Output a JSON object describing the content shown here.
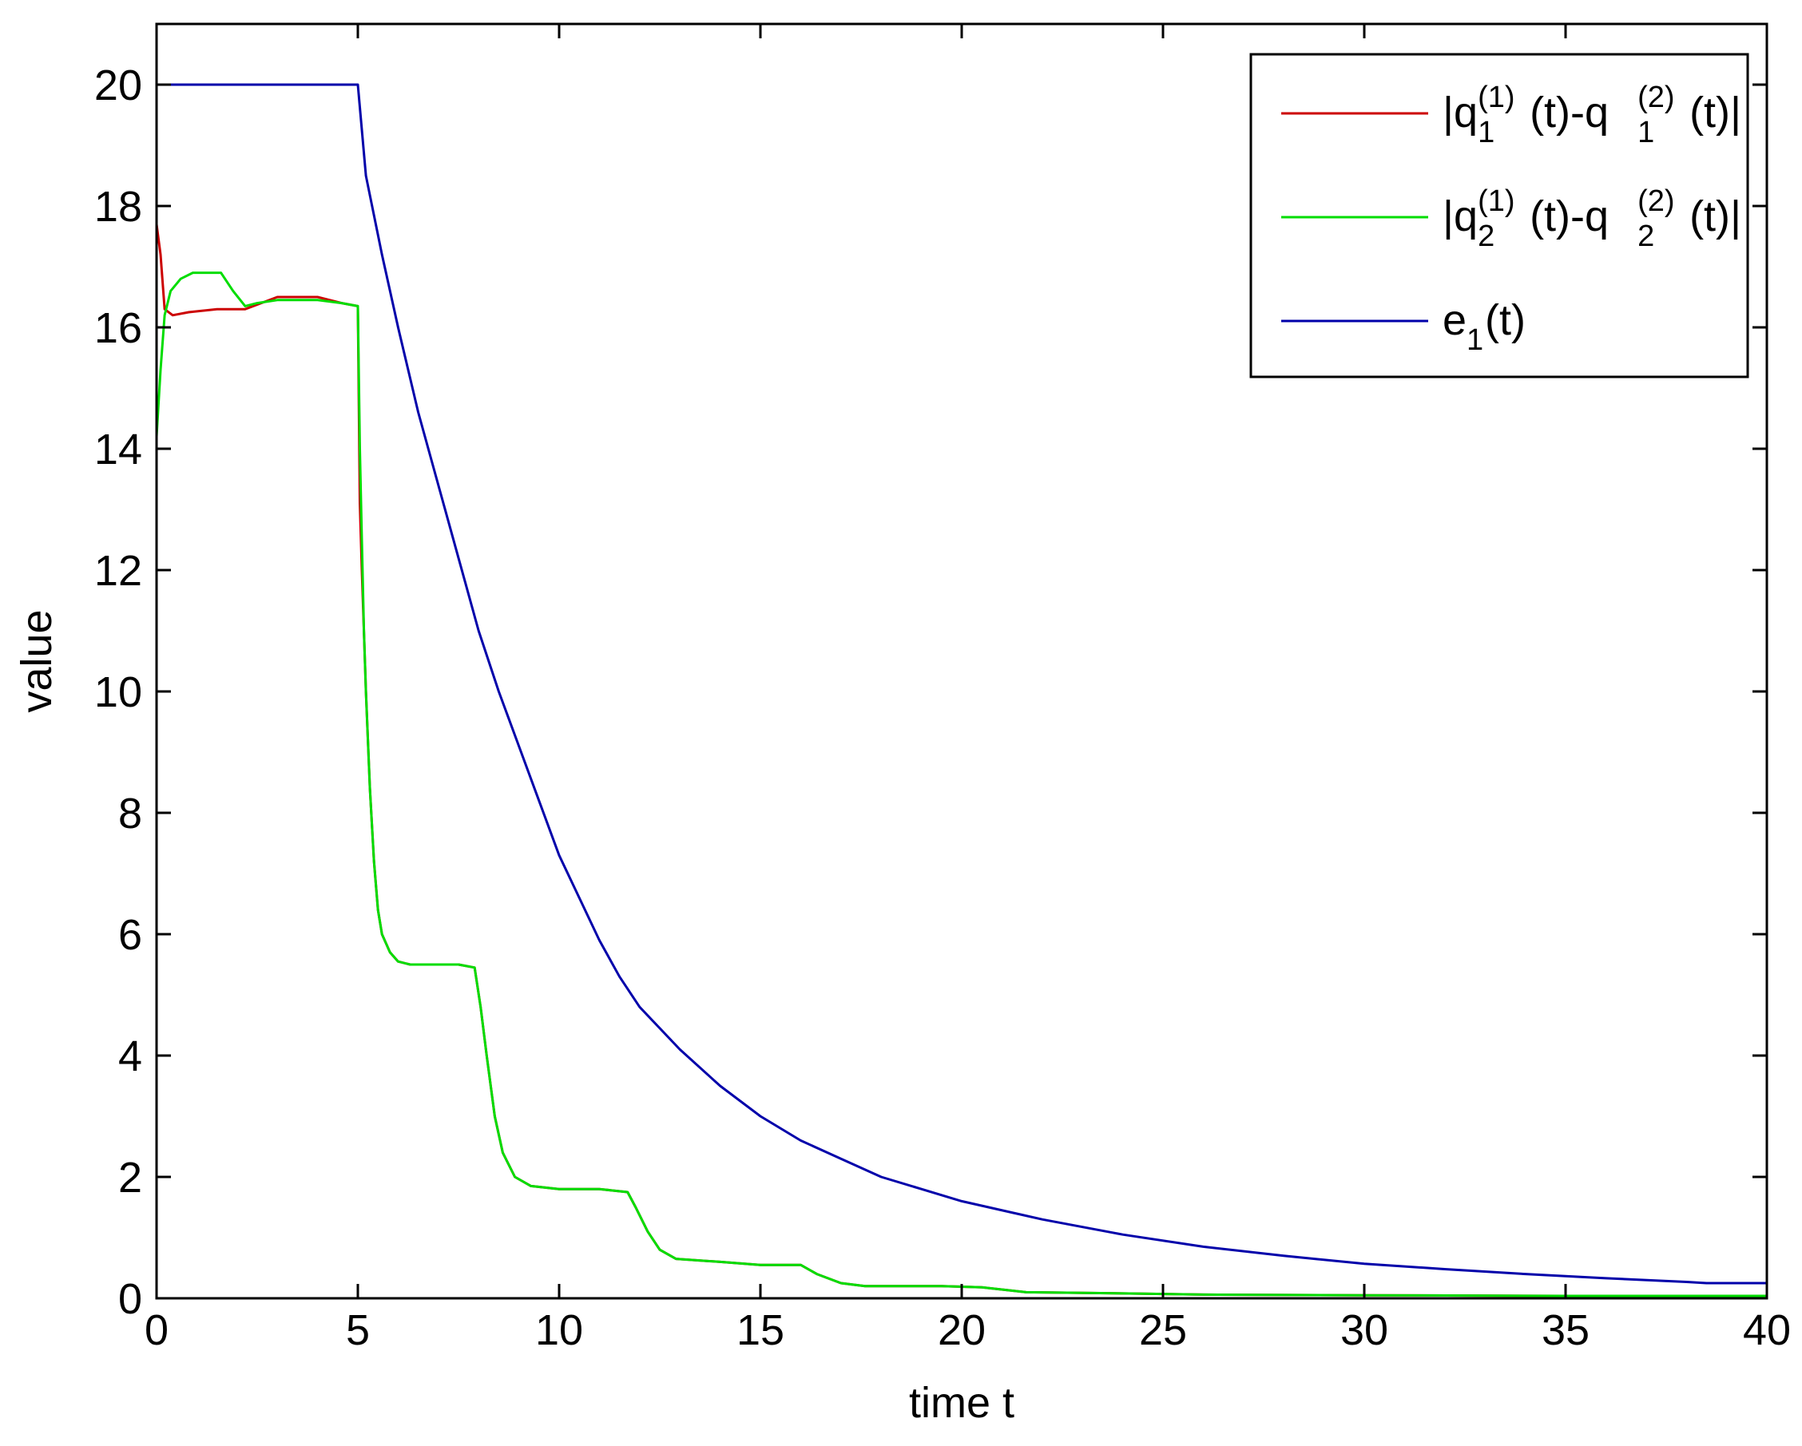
{
  "chart_data": {
    "type": "line",
    "title": "",
    "xlabel": "time t",
    "ylabel": "value",
    "xlim": [
      0,
      40
    ],
    "ylim": [
      0,
      21
    ],
    "xticks": [
      0,
      5,
      10,
      15,
      20,
      25,
      30,
      35,
      40
    ],
    "yticks": [
      0,
      2,
      4,
      6,
      8,
      10,
      12,
      14,
      16,
      18,
      20
    ],
    "xtick_labels": [
      "0",
      "5",
      "10",
      "15",
      "20",
      "25",
      "30",
      "35",
      "40"
    ],
    "ytick_labels": [
      "0",
      "2",
      "4",
      "6",
      "8",
      "10",
      "12",
      "14",
      "16",
      "18",
      "20"
    ],
    "grid": false,
    "legend_position": "top-right",
    "series": [
      {
        "name": "|q1(1)(t)-q1(2)(t)|",
        "legend": {
          "base": "|q",
          "sub1": "1",
          "sup1": "(1)",
          "mid": "(t)-q",
          "sub2": "1",
          "sup2": "(2)",
          "tail": "(t)|"
        },
        "color": "#cc0000",
        "x": [
          0,
          0.1,
          0.2,
          0.4,
          0.8,
          1.5,
          2.2,
          3.0,
          4.0,
          4.6,
          5.0,
          5.05,
          5.1,
          5.15,
          5.2,
          5.3,
          5.4,
          5.5,
          5.6,
          5.8,
          6.0,
          6.3,
          7.0,
          7.5,
          7.9,
          8.05,
          8.2,
          8.4,
          8.6,
          8.9,
          9.3,
          10.0,
          11.0,
          11.7,
          11.9,
          12.2,
          12.5,
          12.9,
          14.0,
          15.0,
          16.0,
          16.4,
          17.0,
          17.6,
          19.5,
          20.5,
          21.6,
          24.0,
          26.0,
          30.0,
          35.0,
          40.0
        ],
        "y": [
          17.7,
          17.2,
          16.3,
          16.2,
          16.25,
          16.3,
          16.3,
          16.5,
          16.5,
          16.4,
          16.35,
          13.1,
          12.0,
          11.0,
          10.0,
          8.4,
          7.2,
          6.4,
          6.0,
          5.7,
          5.55,
          5.5,
          5.5,
          5.5,
          5.45,
          4.8,
          4.0,
          3.0,
          2.4,
          2.0,
          1.85,
          1.8,
          1.8,
          1.75,
          1.5,
          1.1,
          0.8,
          0.65,
          0.6,
          0.55,
          0.55,
          0.4,
          0.25,
          0.2,
          0.2,
          0.18,
          0.1,
          0.08,
          0.06,
          0.05,
          0.04,
          0.04
        ]
      },
      {
        "name": "|q2(1)(t)-q2(2)(t)|",
        "legend": {
          "base": "|q",
          "sub1": "2",
          "sup1": "(1)",
          "mid": "(t)-q",
          "sub2": "2",
          "sup2": "(2)",
          "tail": "(t)|"
        },
        "color": "#00dd00",
        "x": [
          0,
          0.1,
          0.2,
          0.35,
          0.6,
          0.9,
          1.2,
          1.6,
          1.9,
          2.2,
          2.5,
          3.0,
          4.0,
          4.6,
          5.0,
          5.05,
          5.1,
          5.15,
          5.2,
          5.3,
          5.4,
          5.5,
          5.6,
          5.8,
          6.0,
          6.3,
          7.0,
          7.5,
          7.9,
          8.05,
          8.2,
          8.4,
          8.6,
          8.9,
          9.3,
          10.0,
          11.0,
          11.7,
          11.9,
          12.2,
          12.5,
          12.9,
          14.0,
          15.0,
          16.0,
          16.4,
          17.0,
          17.6,
          19.5,
          20.5,
          21.6,
          24.0,
          26.0,
          30.0,
          35.0,
          40.0
        ],
        "y": [
          14.2,
          15.3,
          16.2,
          16.6,
          16.8,
          16.9,
          16.9,
          16.9,
          16.6,
          16.35,
          16.4,
          16.45,
          16.45,
          16.4,
          16.35,
          14.0,
          12.5,
          11.0,
          10.0,
          8.4,
          7.2,
          6.4,
          6.0,
          5.7,
          5.55,
          5.5,
          5.5,
          5.5,
          5.45,
          4.8,
          4.0,
          3.0,
          2.4,
          2.0,
          1.85,
          1.8,
          1.8,
          1.75,
          1.5,
          1.1,
          0.8,
          0.65,
          0.6,
          0.55,
          0.55,
          0.4,
          0.25,
          0.2,
          0.2,
          0.18,
          0.1,
          0.08,
          0.06,
          0.05,
          0.04,
          0.04
        ]
      },
      {
        "name": "e1(t)",
        "legend": {
          "base": "e",
          "sub1": "1",
          "sup1": "",
          "mid": "(t)",
          "sub2": "",
          "sup2": "",
          "tail": ""
        },
        "color": "#0000aa",
        "x": [
          0,
          5.0,
          5.2,
          5.6,
          6.0,
          6.5,
          7.0,
          7.5,
          8.0,
          8.5,
          9.0,
          9.5,
          10.0,
          10.5,
          11.0,
          11.5,
          12.0,
          13.0,
          14.0,
          15.0,
          16.0,
          17.0,
          18.0,
          19.0,
          20.0,
          22.0,
          24.0,
          26.0,
          28.0,
          30.0,
          32.0,
          34.0,
          36.0,
          38.0,
          38.5,
          40.0
        ],
        "y": [
          20.0,
          20.0,
          18.5,
          17.2,
          16.0,
          14.6,
          13.4,
          12.2,
          11.0,
          10.0,
          9.1,
          8.2,
          7.3,
          6.6,
          5.9,
          5.3,
          4.8,
          4.1,
          3.5,
          3.0,
          2.6,
          2.3,
          2.0,
          1.8,
          1.6,
          1.3,
          1.05,
          0.85,
          0.7,
          0.57,
          0.48,
          0.4,
          0.33,
          0.27,
          0.25,
          0.25
        ]
      }
    ]
  }
}
